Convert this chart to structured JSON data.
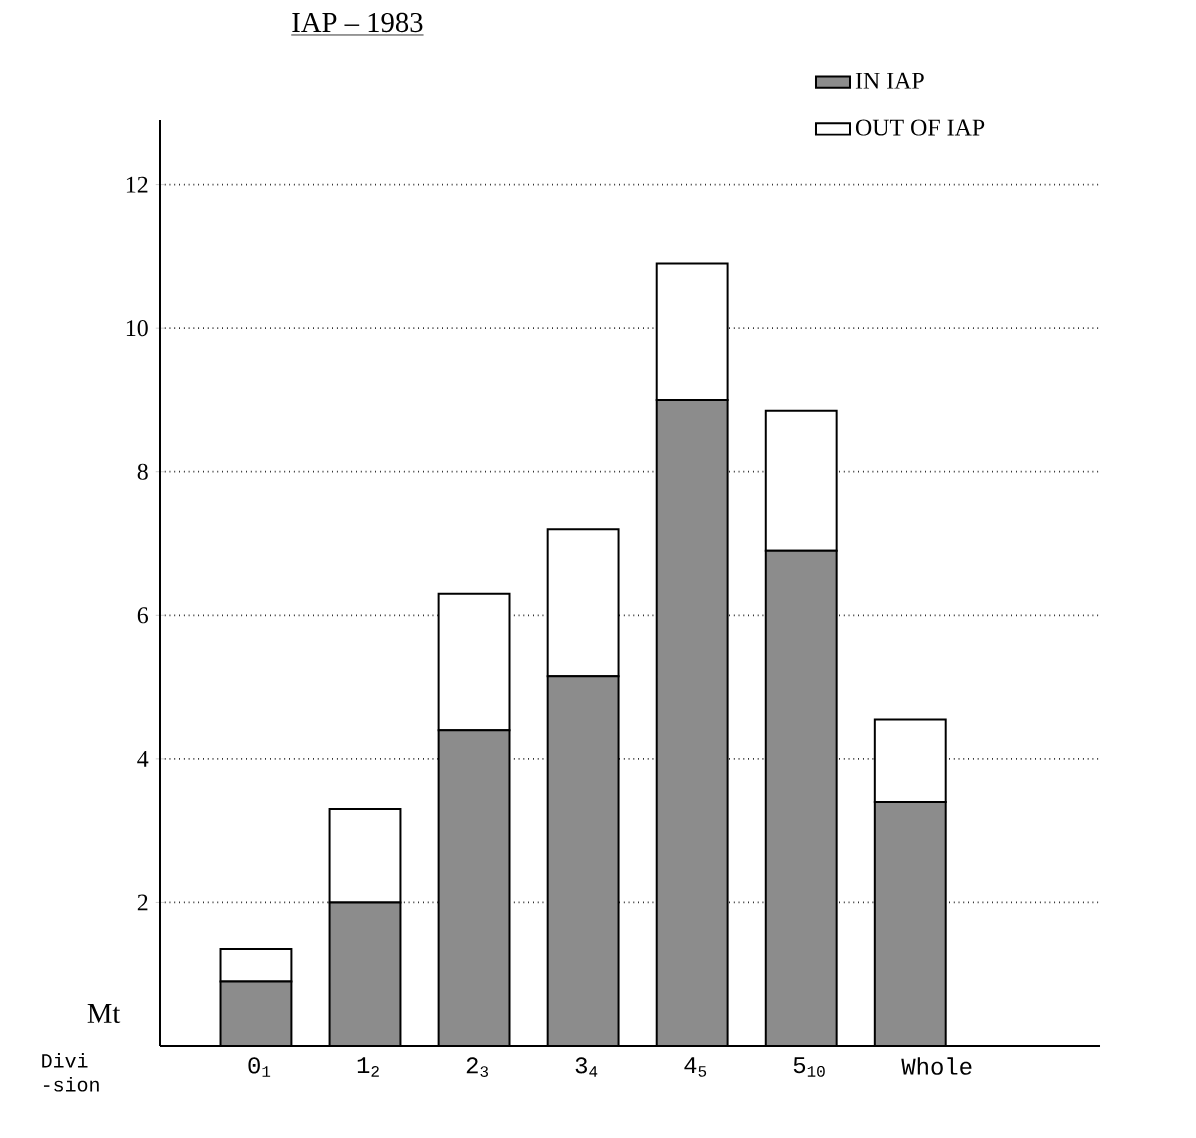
{
  "chart_data": {
    "type": "bar",
    "stacked": true,
    "title": "IAP – 1983",
    "xlabel": "Divi -sion",
    "ylabel": "Mt",
    "categories": [
      "0$_{1}$",
      "1$_{2}$",
      "2$_{3}$",
      "3$_{4}$",
      "4$_{5}$",
      "5$_{10}$",
      "Whole"
    ],
    "series": [
      {
        "name": "IN IAP",
        "color": "#8c8c8c",
        "values": [
          0.9,
          2.0,
          4.4,
          5.15,
          9.0,
          6.9,
          3.4
        ]
      },
      {
        "name": "OUT OF IAP",
        "color": "#ffffff",
        "values": [
          0.45,
          1.3,
          1.9,
          2.05,
          1.9,
          1.95,
          1.15
        ]
      }
    ],
    "ylim": [
      0,
      12.9
    ],
    "yticks": [
      2,
      4,
      6,
      8,
      10,
      12
    ],
    "grid": "y",
    "legend": "top right"
  }
}
